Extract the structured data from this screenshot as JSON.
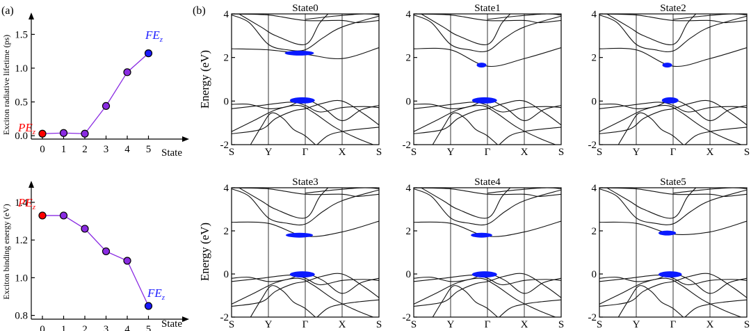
{
  "panel_labels": {
    "a": "(a)",
    "b": "(b)"
  },
  "colors": {
    "pe": "#ff0000",
    "fe": "#1a1aff",
    "mid": "#8a2be2",
    "weight": "#0a1aff"
  },
  "chart_data": [
    {
      "type": "line",
      "id": "lifetime",
      "ylabel": "Exciton radiative lifetime (ps)",
      "xlabel": "State",
      "x": [
        0,
        1,
        2,
        3,
        4,
        5
      ],
      "values": [
        0.03,
        0.04,
        0.03,
        0.44,
        0.94,
        1.22
      ],
      "xticks": [
        "0",
        "1",
        "2",
        "3",
        "4",
        "5"
      ],
      "yticks": [
        "0.0",
        "0.5",
        "1.0",
        "1.5"
      ],
      "ylim": [
        -0.05,
        1.7
      ],
      "annotations": {
        "pe_main": "PE",
        "pe_sub": "z",
        "fe_main": "FE",
        "fe_sub": "z"
      }
    },
    {
      "type": "line",
      "id": "binding",
      "ylabel": "Exciton binding energy (eV)",
      "xlabel": "State",
      "x": [
        0,
        1,
        2,
        3,
        4,
        5
      ],
      "values": [
        1.33,
        1.33,
        1.26,
        1.14,
        1.09,
        0.85
      ],
      "xticks": [
        "0",
        "1",
        "2",
        "3",
        "4",
        "5"
      ],
      "yticks": [
        "0.8",
        "1.0",
        "1.2",
        "1.4"
      ],
      "ylim": [
        0.78,
        1.47
      ],
      "annotations": {
        "pe_main": "PE",
        "pe_sub": "z",
        "fe_main": "FE",
        "fe_sub": "z"
      }
    },
    {
      "type": "line",
      "id": "bands",
      "ylabel": "Energy (eV)",
      "yticks": [
        "-2",
        "0",
        "2",
        "4"
      ],
      "ylim": [
        -2,
        4
      ],
      "kpath": [
        "S",
        "Y",
        "Γ",
        "X",
        "S"
      ],
      "panels": [
        {
          "title": "State0",
          "cb_shift": 0.55,
          "vb_shift": 0.0,
          "cb_blob": 0.3,
          "vb_blob": 0.3
        },
        {
          "title": "State1",
          "cb_shift": 0.0,
          "vb_shift": 0.0,
          "cb_blob": 0.1,
          "vb_blob": 0.3
        },
        {
          "title": "State2",
          "cb_shift": 0.0,
          "vb_shift": 0.0,
          "cb_blob": 0.1,
          "vb_blob": 0.2
        },
        {
          "title": "State3",
          "cb_shift": 0.15,
          "vb_shift": -0.05,
          "cb_blob": 0.28,
          "vb_blob": 0.3
        },
        {
          "title": "State4",
          "cb_shift": 0.15,
          "vb_shift": -0.05,
          "cb_blob": 0.22,
          "vb_blob": 0.3
        },
        {
          "title": "State5",
          "cb_shift": 0.25,
          "vb_shift": -0.05,
          "cb_blob": 0.18,
          "vb_blob": 0.28
        }
      ]
    }
  ]
}
